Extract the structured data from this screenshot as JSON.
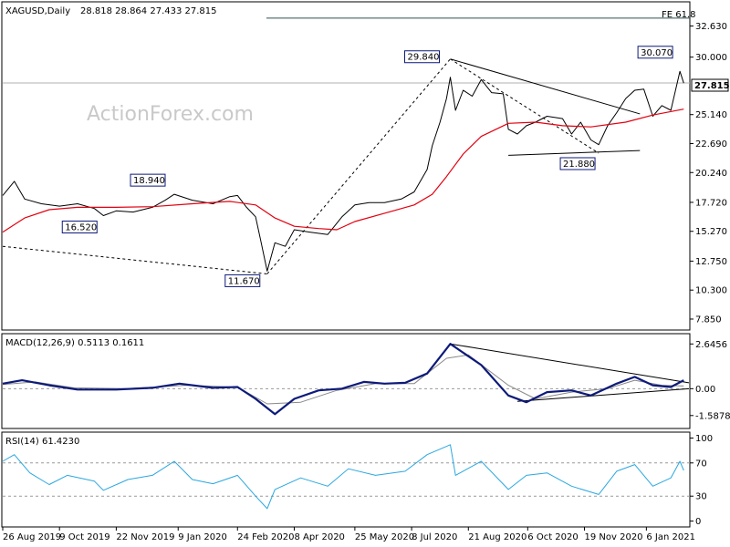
{
  "chart_data": [
    {
      "type": "candlestick",
      "symbol_header": "XAGUSD,Daily",
      "ohlc_header": "28.818 28.864 27.433 27.815",
      "y_ticks": [
        "32.630",
        "30.000",
        "27.815",
        "25.140",
        "22.690",
        "20.240",
        "17.720",
        "15.270",
        "12.750",
        "10.300",
        "7.850"
      ],
      "y_tick_values": [
        32.63,
        30.0,
        27.815,
        25.14,
        22.69,
        20.24,
        17.72,
        15.27,
        12.75,
        10.3,
        7.85
      ],
      "ylim": [
        7.0,
        34.6
      ],
      "current_price_label": "27.815",
      "fib_label": "FE 61.8",
      "fib_level": 33.3,
      "annotations": [
        {
          "label": "29.840",
          "date": "2020-08-07"
        },
        {
          "label": "30.070",
          "date": "2021-02-01"
        },
        {
          "label": "18.940",
          "date": "2020-01-06"
        },
        {
          "label": "16.520",
          "date": "2019-11-12"
        },
        {
          "label": "11.670",
          "date": "2020-03-18"
        },
        {
          "label": "21.880",
          "date": "2020-11-30"
        },
        {
          "label": "",
          "date": "2019-09-04"
        }
      ],
      "close_series": [
        {
          "date": "2019-08-26",
          "value": 18.3
        },
        {
          "date": "2019-09-04",
          "value": 19.5
        },
        {
          "date": "2019-09-12",
          "value": 18.0
        },
        {
          "date": "2019-09-25",
          "value": 17.6
        },
        {
          "date": "2019-10-09",
          "value": 17.4
        },
        {
          "date": "2019-10-23",
          "value": 17.6
        },
        {
          "date": "2019-11-05",
          "value": 17.2
        },
        {
          "date": "2019-11-12",
          "value": 16.6
        },
        {
          "date": "2019-11-22",
          "value": 17.0
        },
        {
          "date": "2019-12-05",
          "value": 16.9
        },
        {
          "date": "2019-12-20",
          "value": 17.3
        },
        {
          "date": "2019-12-30",
          "value": 17.9
        },
        {
          "date": "2020-01-06",
          "value": 18.4
        },
        {
          "date": "2020-01-20",
          "value": 17.9
        },
        {
          "date": "2020-02-05",
          "value": 17.6
        },
        {
          "date": "2020-02-18",
          "value": 18.2
        },
        {
          "date": "2020-02-24",
          "value": 18.3
        },
        {
          "date": "2020-03-02",
          "value": 17.3
        },
        {
          "date": "2020-03-09",
          "value": 16.5
        },
        {
          "date": "2020-03-13",
          "value": 14.5
        },
        {
          "date": "2020-03-18",
          "value": 11.9
        },
        {
          "date": "2020-03-24",
          "value": 14.3
        },
        {
          "date": "2020-04-01",
          "value": 14.0
        },
        {
          "date": "2020-04-08",
          "value": 15.4
        },
        {
          "date": "2020-04-20",
          "value": 15.2
        },
        {
          "date": "2020-05-04",
          "value": 15.0
        },
        {
          "date": "2020-05-15",
          "value": 16.5
        },
        {
          "date": "2020-05-25",
          "value": 17.5
        },
        {
          "date": "2020-06-05",
          "value": 17.7
        },
        {
          "date": "2020-06-17",
          "value": 17.7
        },
        {
          "date": "2020-06-30",
          "value": 18.0
        },
        {
          "date": "2020-07-10",
          "value": 18.6
        },
        {
          "date": "2020-07-20",
          "value": 20.5
        },
        {
          "date": "2020-07-24",
          "value": 22.5
        },
        {
          "date": "2020-07-30",
          "value": 24.5
        },
        {
          "date": "2020-08-04",
          "value": 26.5
        },
        {
          "date": "2020-08-07",
          "value": 28.3
        },
        {
          "date": "2020-08-11",
          "value": 25.5
        },
        {
          "date": "2020-08-17",
          "value": 27.2
        },
        {
          "date": "2020-08-24",
          "value": 26.7
        },
        {
          "date": "2020-08-31",
          "value": 28.1
        },
        {
          "date": "2020-09-08",
          "value": 27.0
        },
        {
          "date": "2020-09-17",
          "value": 26.9
        },
        {
          "date": "2020-09-21",
          "value": 23.9
        },
        {
          "date": "2020-09-28",
          "value": 23.5
        },
        {
          "date": "2020-10-05",
          "value": 24.2
        },
        {
          "date": "2020-10-12",
          "value": 24.5
        },
        {
          "date": "2020-10-21",
          "value": 25.0
        },
        {
          "date": "2020-11-02",
          "value": 24.8
        },
        {
          "date": "2020-11-09",
          "value": 23.5
        },
        {
          "date": "2020-11-16",
          "value": 24.5
        },
        {
          "date": "2020-11-24",
          "value": 23.0
        },
        {
          "date": "2020-11-30",
          "value": 22.6
        },
        {
          "date": "2020-12-07",
          "value": 24.2
        },
        {
          "date": "2020-12-14",
          "value": 25.3
        },
        {
          "date": "2020-12-21",
          "value": 26.5
        },
        {
          "date": "2020-12-28",
          "value": 27.2
        },
        {
          "date": "2021-01-04",
          "value": 27.3
        },
        {
          "date": "2021-01-11",
          "value": 25.0
        },
        {
          "date": "2021-01-18",
          "value": 25.9
        },
        {
          "date": "2021-01-25",
          "value": 25.5
        },
        {
          "date": "2021-02-01",
          "value": 28.8
        },
        {
          "date": "2021-02-04",
          "value": 27.8
        }
      ],
      "ma_series": [
        {
          "date": "2019-08-26",
          "value": 15.2
        },
        {
          "date": "2019-09-12",
          "value": 16.4
        },
        {
          "date": "2019-10-01",
          "value": 17.1
        },
        {
          "date": "2019-10-23",
          "value": 17.3
        },
        {
          "date": "2019-11-22",
          "value": 17.3
        },
        {
          "date": "2019-12-20",
          "value": 17.35
        },
        {
          "date": "2020-01-20",
          "value": 17.6
        },
        {
          "date": "2020-02-18",
          "value": 17.8
        },
        {
          "date": "2020-03-09",
          "value": 17.5
        },
        {
          "date": "2020-03-24",
          "value": 16.4
        },
        {
          "date": "2020-04-08",
          "value": 15.7
        },
        {
          "date": "2020-04-27",
          "value": 15.5
        },
        {
          "date": "2020-05-11",
          "value": 15.4
        },
        {
          "date": "2020-05-25",
          "value": 16.1
        },
        {
          "date": "2020-06-17",
          "value": 16.8
        },
        {
          "date": "2020-07-10",
          "value": 17.5
        },
        {
          "date": "2020-07-24",
          "value": 18.4
        },
        {
          "date": "2020-08-04",
          "value": 19.9
        },
        {
          "date": "2020-08-17",
          "value": 21.8
        },
        {
          "date": "2020-08-31",
          "value": 23.3
        },
        {
          "date": "2020-09-21",
          "value": 24.4
        },
        {
          "date": "2020-10-12",
          "value": 24.5
        },
        {
          "date": "2020-11-02",
          "value": 24.2
        },
        {
          "date": "2020-11-24",
          "value": 24.1
        },
        {
          "date": "2020-12-21",
          "value": 24.5
        },
        {
          "date": "2021-01-11",
          "value": 25.1
        },
        {
          "date": "2021-02-04",
          "value": 25.6
        }
      ],
      "ma_color": "#e3000f",
      "price_color": "#000000"
    },
    {
      "type": "line",
      "header": "MACD(12,26,9) 0.5113 0.1611",
      "y_ticks": [
        "2.6456",
        "0.00",
        "-1.5878"
      ],
      "y_tick_values": [
        2.6456,
        0.0,
        -1.5878
      ],
      "ylim": [
        -2.3,
        3.2
      ],
      "series": [
        {
          "name": "",
          "color": "#0d1a7a",
          "values": [
            {
              "date": "2019-08-26",
              "value": 0.3
            },
            {
              "date": "2019-09-10",
              "value": 0.5
            },
            {
              "date": "2019-10-01",
              "value": 0.2
            },
            {
              "date": "2019-10-23",
              "value": -0.05
            },
            {
              "date": "2019-11-22",
              "value": -0.05
            },
            {
              "date": "2019-12-20",
              "value": 0.05
            },
            {
              "date": "2020-01-10",
              "value": 0.3
            },
            {
              "date": "2020-02-05",
              "value": 0.05
            },
            {
              "date": "2020-02-24",
              "value": 0.1
            },
            {
              "date": "2020-03-09",
              "value": -0.6
            },
            {
              "date": "2020-03-24",
              "value": -1.5
            },
            {
              "date": "2020-04-08",
              "value": -0.6
            },
            {
              "date": "2020-04-27",
              "value": -0.1
            },
            {
              "date": "2020-05-15",
              "value": 0.0
            },
            {
              "date": "2020-06-01",
              "value": 0.4
            },
            {
              "date": "2020-06-17",
              "value": 0.3
            },
            {
              "date": "2020-07-03",
              "value": 0.35
            },
            {
              "date": "2020-07-20",
              "value": 0.9
            },
            {
              "date": "2020-08-07",
              "value": 2.65
            },
            {
              "date": "2020-08-31",
              "value": 1.4
            },
            {
              "date": "2020-09-21",
              "value": -0.4
            },
            {
              "date": "2020-10-05",
              "value": -0.8
            },
            {
              "date": "2020-10-21",
              "value": -0.2
            },
            {
              "date": "2020-11-09",
              "value": -0.1
            },
            {
              "date": "2020-11-24",
              "value": -0.4
            },
            {
              "date": "2020-12-14",
              "value": 0.3
            },
            {
              "date": "2020-12-28",
              "value": 0.7
            },
            {
              "date": "2021-01-11",
              "value": 0.2
            },
            {
              "date": "2021-01-25",
              "value": 0.1
            },
            {
              "date": "2021-02-04",
              "value": 0.5
            }
          ]
        },
        {
          "name": "",
          "color": "#888888",
          "values": [
            {
              "date": "2019-08-26",
              "value": 0.25
            },
            {
              "date": "2019-09-20",
              "value": 0.4
            },
            {
              "date": "2019-10-20",
              "value": 0.05
            },
            {
              "date": "2019-12-01",
              "value": 0.0
            },
            {
              "date": "2020-01-15",
              "value": 0.2
            },
            {
              "date": "2020-02-24",
              "value": 0.1
            },
            {
              "date": "2020-03-18",
              "value": -0.9
            },
            {
              "date": "2020-04-13",
              "value": -0.8
            },
            {
              "date": "2020-05-11",
              "value": -0.1
            },
            {
              "date": "2020-06-10",
              "value": 0.3
            },
            {
              "date": "2020-07-10",
              "value": 0.3
            },
            {
              "date": "2020-08-04",
              "value": 1.8
            },
            {
              "date": "2020-08-21",
              "value": 2.0
            },
            {
              "date": "2020-09-21",
              "value": 0.2
            },
            {
              "date": "2020-10-12",
              "value": -0.6
            },
            {
              "date": "2020-11-09",
              "value": -0.2
            },
            {
              "date": "2020-12-07",
              "value": 0.0
            },
            {
              "date": "2020-12-28",
              "value": 0.5
            },
            {
              "date": "2021-01-18",
              "value": 0.2
            },
            {
              "date": "2021-02-04",
              "value": 0.16
            }
          ]
        }
      ]
    },
    {
      "type": "line",
      "header": "RSI(14) 61.4230",
      "y_ticks": [
        "100",
        "70",
        "30",
        "0"
      ],
      "y_tick_values": [
        100,
        70,
        30,
        0
      ],
      "ylim": [
        -6,
        106
      ],
      "series": [
        {
          "name": "",
          "color": "#2aa7e0",
          "values": [
            {
              "date": "2019-08-26",
              "value": 72
            },
            {
              "date": "2019-09-04",
              "value": 80
            },
            {
              "date": "2019-09-16",
              "value": 58
            },
            {
              "date": "2019-10-01",
              "value": 44
            },
            {
              "date": "2019-10-15",
              "value": 55
            },
            {
              "date": "2019-11-05",
              "value": 48
            },
            {
              "date": "2019-11-12",
              "value": 37
            },
            {
              "date": "2019-12-01",
              "value": 50
            },
            {
              "date": "2019-12-20",
              "value": 55
            },
            {
              "date": "2020-01-06",
              "value": 72
            },
            {
              "date": "2020-01-20",
              "value": 50
            },
            {
              "date": "2020-02-05",
              "value": 45
            },
            {
              "date": "2020-02-24",
              "value": 55
            },
            {
              "date": "2020-03-09",
              "value": 30
            },
            {
              "date": "2020-03-18",
              "value": 15
            },
            {
              "date": "2020-03-24",
              "value": 38
            },
            {
              "date": "2020-04-13",
              "value": 52
            },
            {
              "date": "2020-05-04",
              "value": 42
            },
            {
              "date": "2020-05-20",
              "value": 63
            },
            {
              "date": "2020-06-10",
              "value": 55
            },
            {
              "date": "2020-07-03",
              "value": 60
            },
            {
              "date": "2020-07-20",
              "value": 80
            },
            {
              "date": "2020-08-07",
              "value": 92
            },
            {
              "date": "2020-08-11",
              "value": 55
            },
            {
              "date": "2020-08-31",
              "value": 72
            },
            {
              "date": "2020-09-21",
              "value": 38
            },
            {
              "date": "2020-10-05",
              "value": 55
            },
            {
              "date": "2020-10-21",
              "value": 58
            },
            {
              "date": "2020-11-09",
              "value": 42
            },
            {
              "date": "2020-11-30",
              "value": 32
            },
            {
              "date": "2020-12-14",
              "value": 60
            },
            {
              "date": "2020-12-28",
              "value": 68
            },
            {
              "date": "2021-01-11",
              "value": 42
            },
            {
              "date": "2021-01-25",
              "value": 52
            },
            {
              "date": "2021-02-01",
              "value": 72
            },
            {
              "date": "2021-02-04",
              "value": 61
            }
          ]
        }
      ]
    }
  ],
  "x_axis": {
    "labels": [
      "26 Aug 2019",
      "9 Oct 2019",
      "22 Nov 2019",
      "9 Jan 2020",
      "24 Feb 2020",
      "8 Apr 2020",
      "25 May 2020",
      "8 Jul 2020",
      "21 Aug 2020",
      "6 Oct 2020",
      "19 Nov 2020",
      "6 Jan 2021"
    ],
    "dates": [
      "2019-08-26",
      "2019-10-09",
      "2019-11-22",
      "2020-01-09",
      "2020-02-24",
      "2020-04-08",
      "2020-05-25",
      "2020-07-08",
      "2020-08-21",
      "2020-10-06",
      "2020-11-19",
      "2021-01-06"
    ],
    "start": "2019-08-26",
    "end": "2021-02-08"
  },
  "watermark": "ActionForex.com"
}
